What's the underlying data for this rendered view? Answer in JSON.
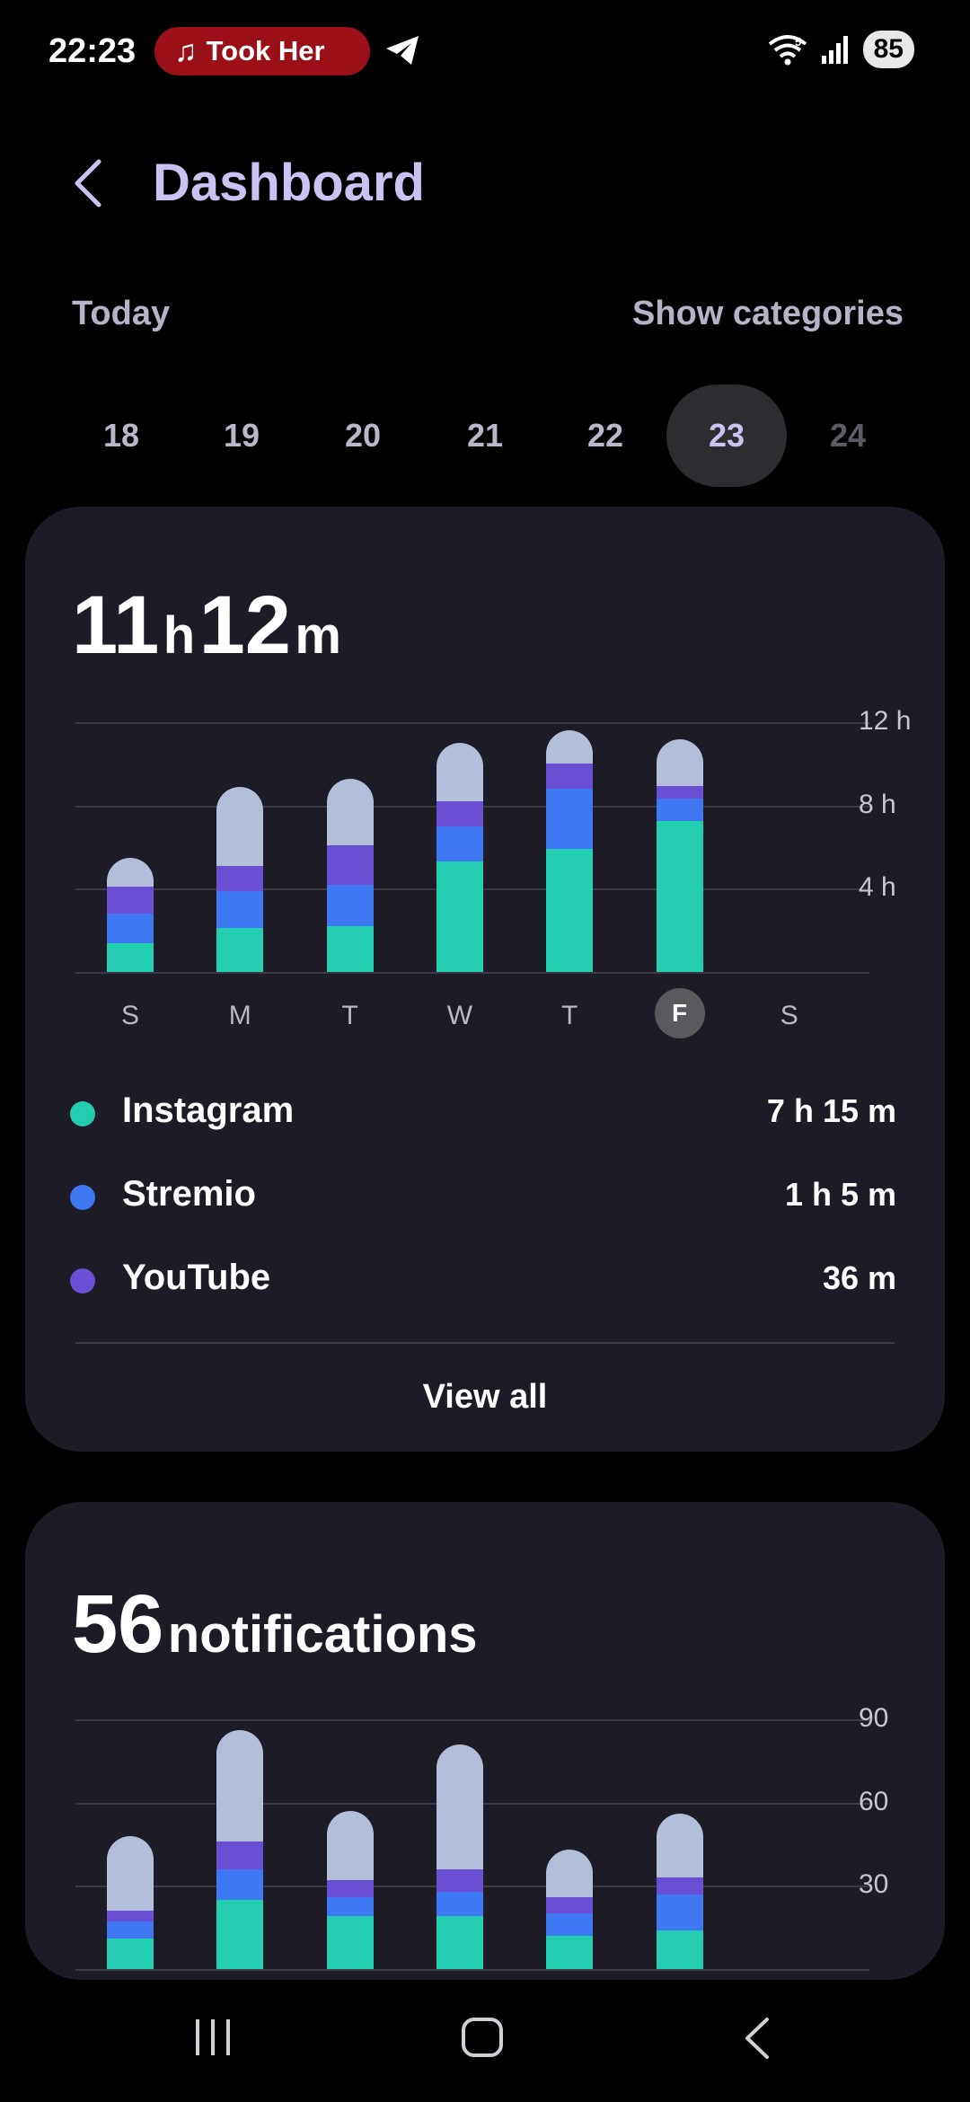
{
  "status_bar": {
    "time": "22:23",
    "media_title": "Took Her",
    "battery": "85",
    "wifi_badge": "5",
    "icons": [
      "music-note-icon",
      "telegram-icon",
      "wifi-icon",
      "signal-icon",
      "battery-icon"
    ]
  },
  "header": {
    "title": "Dashboard",
    "back_icon": "chevron-left-icon"
  },
  "filter": {
    "period": "Today",
    "toggle": "Show categories"
  },
  "dates": [
    {
      "label": "18",
      "state": "past"
    },
    {
      "label": "19",
      "state": "past"
    },
    {
      "label": "20",
      "state": "past"
    },
    {
      "label": "21",
      "state": "past"
    },
    {
      "label": "22",
      "state": "past"
    },
    {
      "label": "23",
      "state": "selected"
    },
    {
      "label": "24",
      "state": "future"
    }
  ],
  "colors": {
    "instagram": "#23cdb0",
    "stremio": "#3e78f2",
    "youtube": "#6a4fd4",
    "other": "#b3bfd8",
    "accent": "#c9c3f3",
    "card": "#1c1b26"
  },
  "screen_time": {
    "hours": "11",
    "h_unit": "h",
    "minutes": "12",
    "m_unit": "m",
    "legend": [
      {
        "name": "Instagram",
        "value": "7 h 15 m",
        "color": "#23cdb0"
      },
      {
        "name": "Stremio",
        "value": "1 h 5 m",
        "color": "#3e78f2"
      },
      {
        "name": "YouTube",
        "value": "36 m",
        "color": "#6a4fd4"
      }
    ],
    "view_all": "View all"
  },
  "notifications": {
    "count": "56",
    "label": "notifications"
  },
  "chart_data": [
    {
      "type": "bar",
      "stacked": true,
      "categories": [
        "S",
        "M",
        "T",
        "W",
        "T",
        "F",
        "S"
      ],
      "selected_category_index": 5,
      "y_ticks": [
        "4 h",
        "8 h",
        "12 h"
      ],
      "ylim": [
        0,
        12
      ],
      "grid": true,
      "series": [
        {
          "name": "Instagram",
          "color": "#23cdb0",
          "values": [
            1.4,
            2.1,
            2.2,
            5.3,
            5.9,
            7.25,
            0
          ]
        },
        {
          "name": "Stremio",
          "color": "#3e78f2",
          "values": [
            1.4,
            1.8,
            2.0,
            1.7,
            2.9,
            1.08,
            0
          ]
        },
        {
          "name": "YouTube",
          "color": "#6a4fd4",
          "values": [
            1.3,
            1.2,
            1.9,
            1.2,
            1.2,
            0.6,
            0
          ]
        },
        {
          "color": "#b3bfd8",
          "values": [
            1.4,
            3.8,
            3.2,
            2.8,
            1.6,
            2.27,
            0
          ]
        }
      ]
    },
    {
      "type": "bar",
      "stacked": true,
      "categories": [
        "S",
        "M",
        "T",
        "W",
        "T",
        "F",
        "S"
      ],
      "y_ticks": [
        "30",
        "60",
        "90"
      ],
      "ylim": [
        0,
        90
      ],
      "grid": true,
      "series": [
        {
          "name": "Instagram",
          "color": "#23cdb0",
          "values": [
            11,
            25,
            19,
            19,
            12,
            14,
            0
          ]
        },
        {
          "name": "Stremio",
          "color": "#3e78f2",
          "values": [
            6,
            11,
            7,
            9,
            8,
            13,
            0
          ]
        },
        {
          "name": "YouTube",
          "color": "#6a4fd4",
          "values": [
            4,
            10,
            6,
            8,
            6,
            6,
            0
          ]
        },
        {
          "color": "#b3bfd8",
          "values": [
            27,
            40,
            25,
            45,
            17,
            23,
            0
          ]
        }
      ]
    }
  ]
}
